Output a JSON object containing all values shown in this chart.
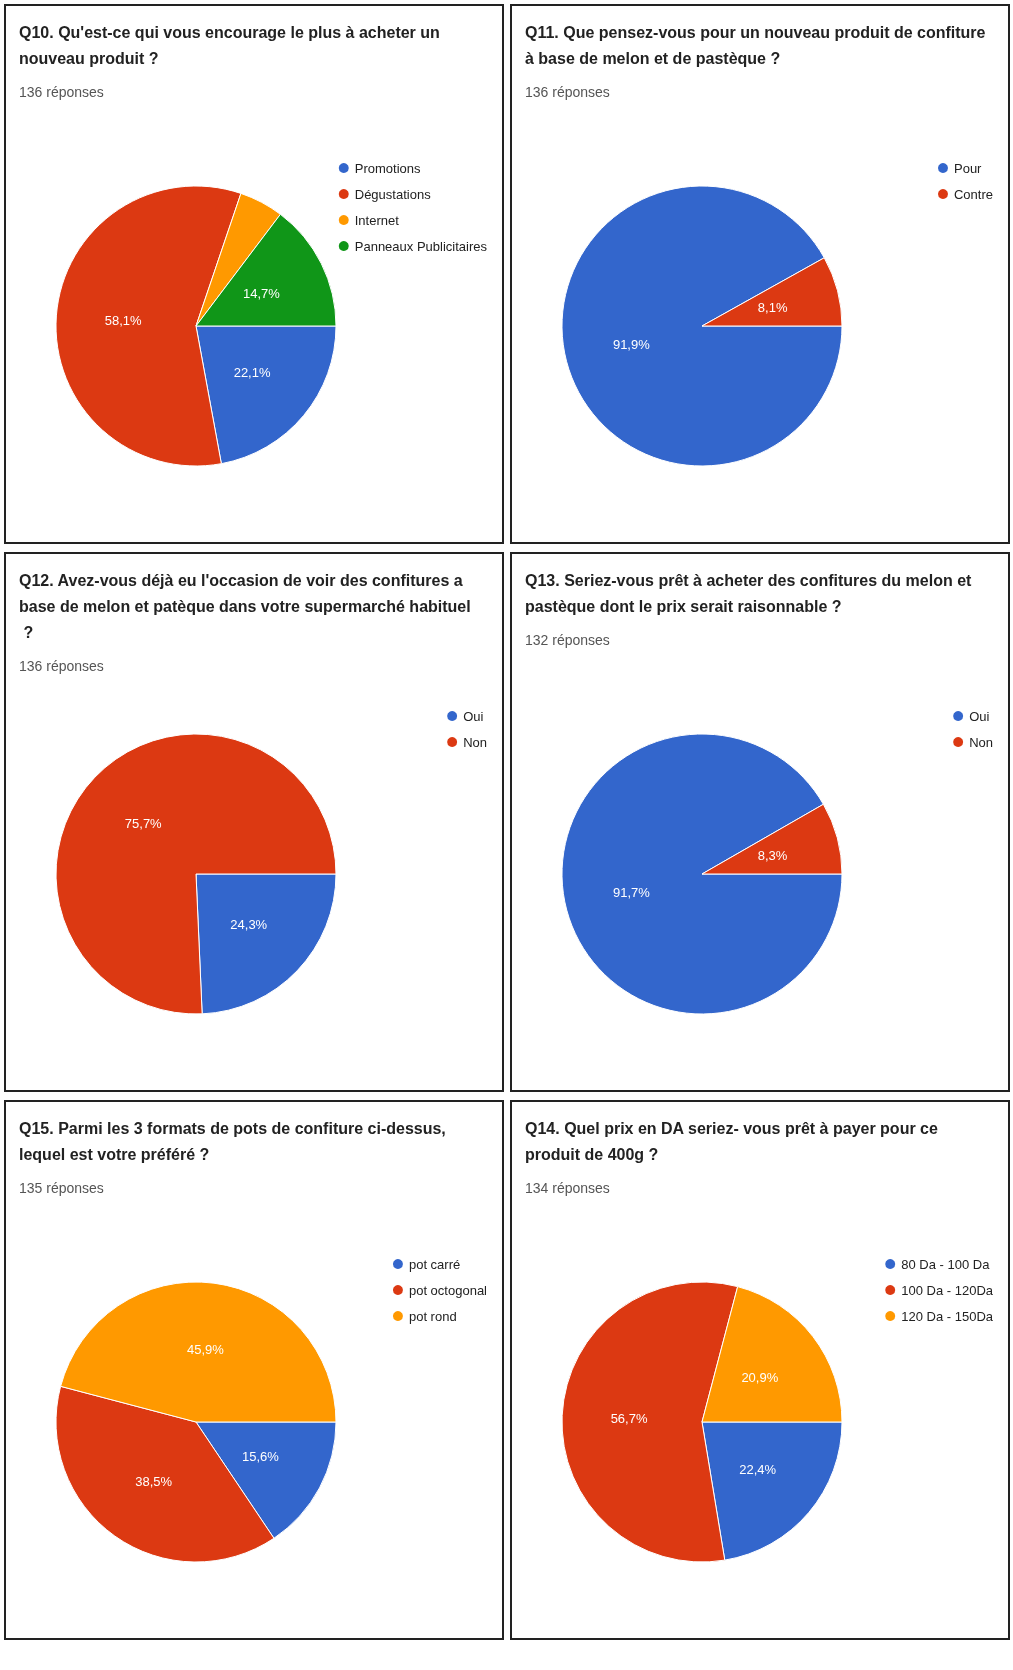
{
  "chart_data": [
    {
      "type": "pie",
      "title": "Q10. Qu'est-ce qui vous encourage le plus à acheter un nouveau produit ?",
      "subtitle": "136 réponses",
      "categories": [
        "Promotions",
        "Dégustations",
        "Internet",
        "Panneaux Publicitaires"
      ],
      "values": [
        22.1,
        58.1,
        5.1,
        14.7
      ],
      "colors": [
        "#3366cc",
        "#dc3912",
        "#ff9900",
        "#109618"
      ],
      "value_labels": [
        "22,1%",
        "58,1%",
        null,
        "14,7%"
      ],
      "legend": "right"
    },
    {
      "type": "pie",
      "title": "Q11. Que pensez-vous pour un nouveau produit de confiture à base de melon et de pastèque ?",
      "subtitle": "136 réponses",
      "categories": [
        "Pour",
        "Contre"
      ],
      "values": [
        91.9,
        8.1
      ],
      "colors": [
        "#3366cc",
        "#dc3912"
      ],
      "value_labels": [
        "91,9%",
        "8,1%"
      ],
      "legend": "right"
    },
    {
      "type": "pie",
      "title": "Q12. Avez-vous déjà eu l'occasion de voir des confitures a base de melon et patèque dans votre supermarché habituel ?",
      "subtitle": "136 réponses",
      "categories": [
        "Oui",
        "Non"
      ],
      "values": [
        24.3,
        75.7
      ],
      "colors": [
        "#3366cc",
        "#dc3912"
      ],
      "value_labels": [
        "24,3%",
        "75,7%"
      ],
      "legend": "right"
    },
    {
      "type": "pie",
      "title": "Q13. Seriez-vous prêt à acheter des confitures du melon et pastèque dont le prix serait raisonnable ?",
      "subtitle": "132 réponses",
      "categories": [
        "Oui",
        "Non"
      ],
      "values": [
        91.7,
        8.3
      ],
      "colors": [
        "#3366cc",
        "#dc3912"
      ],
      "value_labels": [
        "91,7%",
        "8,3%"
      ],
      "legend": "right"
    },
    {
      "type": "pie",
      "title": "Q15. Parmi les 3 formats de pots de confiture ci-dessus, lequel est votre préféré ?",
      "subtitle": "135 réponses",
      "categories": [
        "pot carré",
        "pot octogonal",
        "pot rond"
      ],
      "values": [
        15.6,
        38.5,
        45.9
      ],
      "colors": [
        "#3366cc",
        "#dc3912",
        "#ff9900"
      ],
      "value_labels": [
        "15,6%",
        "38,5%",
        "45,9%"
      ],
      "legend": "right"
    },
    {
      "type": "pie",
      "title": "Q14. Quel prix en DA seriez- vous prêt à payer pour ce produit de 400g ?",
      "subtitle": "134 réponses",
      "categories": [
        "80 Da - 100 Da",
        "100 Da - 120Da",
        "120 Da - 150Da"
      ],
      "values": [
        22.4,
        56.7,
        20.9
      ],
      "colors": [
        "#3366cc",
        "#dc3912",
        "#ff9900"
      ],
      "value_labels": [
        "22,4%",
        "56,7%",
        "20,9%"
      ],
      "legend": "right"
    }
  ]
}
